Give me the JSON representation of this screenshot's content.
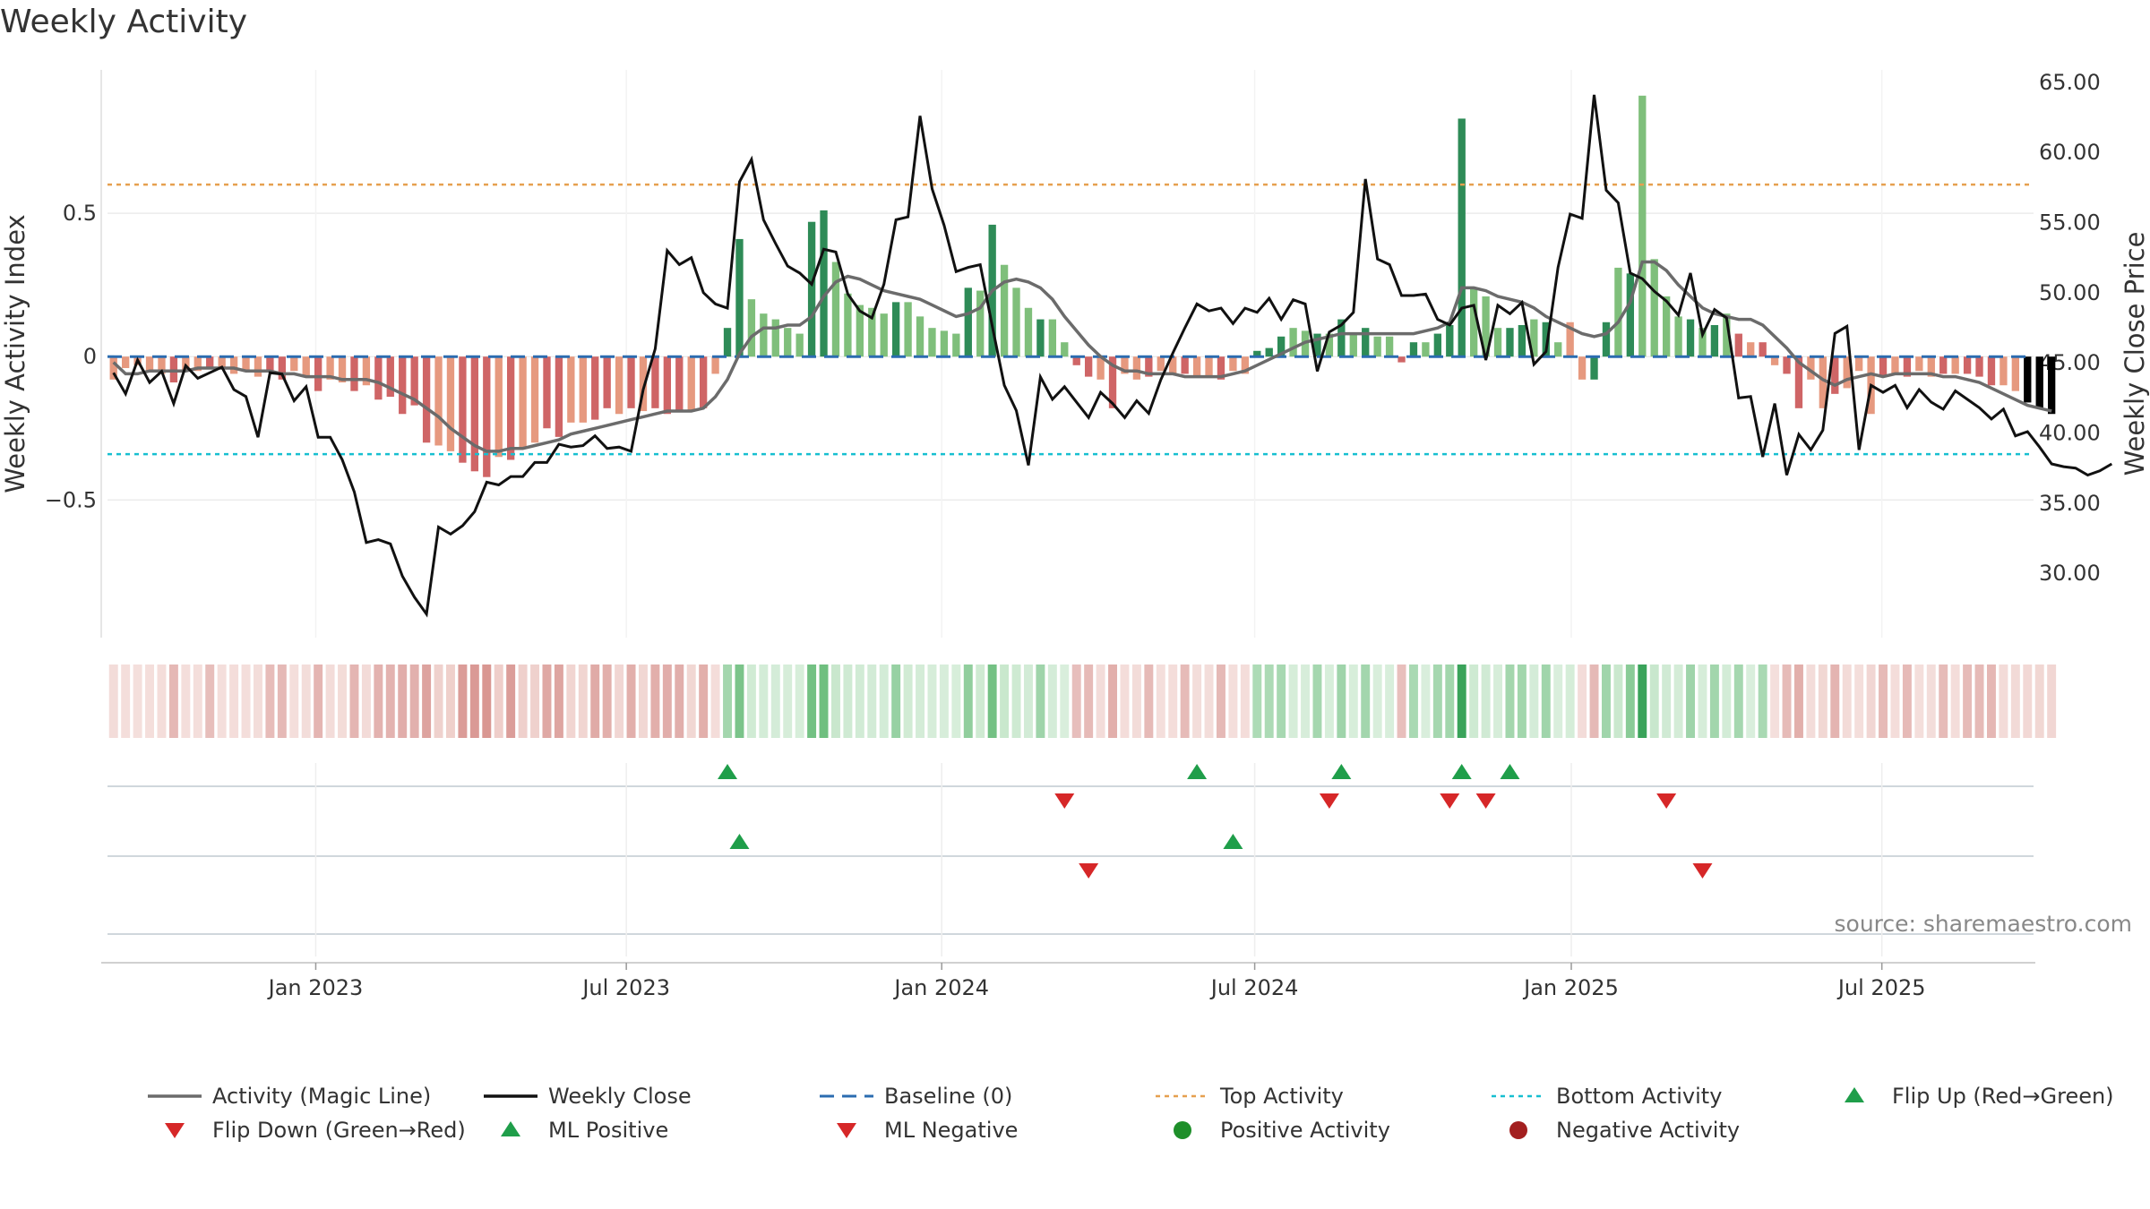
{
  "chart_data": {
    "type": "bar",
    "title": "Weekly Activity",
    "ylabel": "Weekly Activity Index",
    "y2label": "Weekly Close Price",
    "source": "source: sharemaestro.com",
    "ylim": [
      -0.98,
      1.0
    ],
    "y2lim": [
      25.42,
      65.88
    ],
    "yticks": [
      {
        "v": 0.5,
        "label": "0.5"
      },
      {
        "v": 0,
        "label": "0"
      },
      {
        "v": -0.5,
        "label": "−0.5"
      }
    ],
    "y2ticks": [
      {
        "v": 30,
        "label": "30.00"
      },
      {
        "v": 35,
        "label": "35.00"
      },
      {
        "v": 40,
        "label": "40.00"
      },
      {
        "v": 45,
        "label": "45.00"
      },
      {
        "v": 50,
        "label": "50.00"
      },
      {
        "v": 55,
        "label": "55.00"
      },
      {
        "v": 60,
        "label": "60.00"
      },
      {
        "v": 65,
        "label": "65.00"
      }
    ],
    "x_start": "2022-09-05",
    "n_weeks": 160,
    "xticks": [
      {
        "week": 17.3,
        "label": "Jan 2023"
      },
      {
        "week": 43.1,
        "label": "Jul 2023"
      },
      {
        "week": 69.3,
        "label": "Jan 2024"
      },
      {
        "week": 95.3,
        "label": "Jul 2024"
      },
      {
        "week": 121.6,
        "label": "Jan 2025"
      },
      {
        "week": 147.4,
        "label": "Jul 2025"
      }
    ],
    "top_activity": 0.6,
    "bottom_activity": -0.34,
    "activity": [
      -0.08,
      -0.04,
      -0.03,
      -0.05,
      -0.06,
      -0.09,
      -0.05,
      -0.05,
      -0.04,
      -0.04,
      -0.06,
      -0.05,
      -0.07,
      -0.05,
      -0.08,
      -0.05,
      -0.07,
      -0.12,
      -0.08,
      -0.09,
      -0.12,
      -0.1,
      -0.15,
      -0.14,
      -0.2,
      -0.17,
      -0.3,
      -0.31,
      -0.33,
      -0.37,
      -0.4,
      -0.42,
      -0.35,
      -0.36,
      -0.32,
      -0.3,
      -0.25,
      -0.28,
      -0.23,
      -0.23,
      -0.22,
      -0.18,
      -0.2,
      -0.18,
      -0.19,
      -0.18,
      -0.2,
      -0.19,
      -0.19,
      -0.18,
      -0.06,
      0.1,
      0.41,
      0.2,
      0.15,
      0.13,
      0.1,
      0.08,
      0.47,
      0.51,
      0.33,
      0.22,
      0.18,
      0.17,
      0.15,
      0.19,
      0.19,
      0.14,
      0.1,
      0.09,
      0.08,
      0.24,
      0.23,
      0.46,
      0.32,
      0.24,
      0.17,
      0.13,
      0.13,
      0.05,
      -0.03,
      -0.07,
      -0.08,
      -0.18,
      -0.06,
      -0.08,
      -0.07,
      -0.05,
      -0.06,
      -0.06,
      -0.07,
      -0.07,
      -0.08,
      -0.05,
      -0.06,
      0.02,
      0.03,
      0.07,
      0.1,
      0.09,
      0.08,
      0.08,
      0.13,
      0.08,
      0.1,
      0.07,
      0.07,
      -0.02,
      0.05,
      0.05,
      0.08,
      0.11,
      0.83,
      0.24,
      0.21,
      0.1,
      0.1,
      0.11,
      0.13,
      0.12,
      0.05,
      0.12,
      -0.08,
      -0.08,
      0.12,
      0.31,
      0.29,
      0.91,
      0.34,
      0.21,
      0.14,
      0.13,
      0.1,
      0.11,
      0.15,
      0.08,
      0.05,
      0.05,
      -0.03,
      -0.06,
      -0.18,
      -0.08,
      -0.18,
      -0.13,
      -0.11,
      -0.05,
      -0.2,
      -0.07,
      -0.06,
      -0.07,
      -0.05,
      -0.07,
      -0.06,
      -0.06,
      -0.06,
      -0.07,
      -0.1,
      -0.1,
      -0.12,
      -0.16,
      -0.18,
      -0.2
    ],
    "bar_colors": [
      "#e6997f",
      "#e6997f",
      "#e6997f",
      "#e6997f",
      "#e6997f",
      "#cf6566",
      "#e6997f",
      "#e6997f",
      "#cf6566",
      "#e6997f",
      "#e6997f",
      "#e6997f",
      "#e6997f",
      "#cf6566",
      "#cf6566",
      "#e6997f",
      "#e6997f",
      "#cf6566",
      "#e6997f",
      "#e6997f",
      "#cf6566",
      "#e6997f",
      "#cf6566",
      "#cf6566",
      "#cf6566",
      "#cf6566",
      "#cf6566",
      "#e6997f",
      "#e6997f",
      "#cf6566",
      "#cf6566",
      "#cf6566",
      "#e6997f",
      "#cf6566",
      "#e6997f",
      "#e6997f",
      "#cf6566",
      "#cf6566",
      "#e6997f",
      "#e6997f",
      "#cf6566",
      "#cf6566",
      "#e6997f",
      "#cf6566",
      "#e6997f",
      "#cf6566",
      "#cf6566",
      "#cf6566",
      "#e6997f",
      "#cf6566",
      "#e6997f",
      "#2e8b57",
      "#2e8b57",
      "#7fbf7b",
      "#7fbf7b",
      "#7fbf7b",
      "#7fbf7b",
      "#7fbf7b",
      "#2e8b57",
      "#2e8b57",
      "#7fbf7b",
      "#7fbf7b",
      "#7fbf7b",
      "#7fbf7b",
      "#7fbf7b",
      "#2e8b57",
      "#7fbf7b",
      "#7fbf7b",
      "#7fbf7b",
      "#7fbf7b",
      "#7fbf7b",
      "#2e8b57",
      "#7fbf7b",
      "#2e8b57",
      "#7fbf7b",
      "#7fbf7b",
      "#7fbf7b",
      "#2e8b57",
      "#7fbf7b",
      "#7fbf7b",
      "#cf6566",
      "#cf6566",
      "#e6997f",
      "#cf6566",
      "#e6997f",
      "#e6997f",
      "#cf6566",
      "#e6997f",
      "#e6997f",
      "#cf6566",
      "#e6997f",
      "#e6997f",
      "#cf6566",
      "#e6997f",
      "#e6997f",
      "#2e8b57",
      "#2e8b57",
      "#2e8b57",
      "#7fbf7b",
      "#7fbf7b",
      "#2e8b57",
      "#7fbf7b",
      "#2e8b57",
      "#7fbf7b",
      "#2e8b57",
      "#7fbf7b",
      "#7fbf7b",
      "#cf6566",
      "#2e8b57",
      "#7fbf7b",
      "#2e8b57",
      "#2e8b57",
      "#2e8b57",
      "#7fbf7b",
      "#7fbf7b",
      "#7fbf7b",
      "#2e8b57",
      "#2e8b57",
      "#7fbf7b",
      "#2e8b57",
      "#7fbf7b",
      "#e6997f",
      "#e6997f",
      "#2e8b57",
      "#2e8b57",
      "#7fbf7b",
      "#2e8b57",
      "#7fbf7b",
      "#7fbf7b",
      "#7fbf7b",
      "#7fbf7b",
      "#2e8b57",
      "#7fbf7b",
      "#2e8b57",
      "#7fbf7b",
      "#cf6566",
      "#e6997f",
      "#cf6566",
      "#e6997f",
      "#cf6566",
      "#cf6566",
      "#e6997f",
      "#e6997f",
      "#cf6566",
      "#e6997f",
      "#e6997f",
      "#e6997f",
      "#cf6566",
      "#e6997f",
      "#cf6566",
      "#e6997f",
      "#e6997f",
      "#cf6566",
      "#e6997f",
      "#cf6566",
      "#cf6566",
      "#cf6566",
      "#e6997f",
      "#e6997f"
    ],
    "magic_line": [
      -0.02,
      -0.06,
      -0.06,
      -0.05,
      -0.05,
      -0.05,
      -0.05,
      -0.04,
      -0.04,
      -0.04,
      -0.04,
      -0.05,
      -0.05,
      -0.05,
      -0.06,
      -0.06,
      -0.07,
      -0.07,
      -0.07,
      -0.08,
      -0.08,
      -0.08,
      -0.09,
      -0.11,
      -0.13,
      -0.15,
      -0.18,
      -0.21,
      -0.25,
      -0.28,
      -0.31,
      -0.33,
      -0.33,
      -0.32,
      -0.32,
      -0.31,
      -0.3,
      -0.29,
      -0.27,
      -0.26,
      -0.25,
      -0.24,
      -0.23,
      -0.22,
      -0.21,
      -0.2,
      -0.19,
      -0.19,
      -0.19,
      -0.18,
      -0.14,
      -0.08,
      0.01,
      0.07,
      0.1,
      0.1,
      0.11,
      0.11,
      0.14,
      0.21,
      0.26,
      0.28,
      0.27,
      0.25,
      0.23,
      0.22,
      0.21,
      0.2,
      0.18,
      0.16,
      0.14,
      0.15,
      0.17,
      0.23,
      0.26,
      0.27,
      0.26,
      0.24,
      0.2,
      0.14,
      0.09,
      0.04,
      0.0,
      -0.03,
      -0.05,
      -0.05,
      -0.06,
      -0.06,
      -0.06,
      -0.07,
      -0.07,
      -0.07,
      -0.07,
      -0.06,
      -0.05,
      -0.03,
      -0.01,
      0.01,
      0.03,
      0.05,
      0.06,
      0.07,
      0.08,
      0.08,
      0.08,
      0.08,
      0.08,
      0.08,
      0.08,
      0.09,
      0.1,
      0.12,
      0.24,
      0.24,
      0.23,
      0.21,
      0.2,
      0.19,
      0.17,
      0.14,
      0.12,
      0.1,
      0.08,
      0.07,
      0.08,
      0.12,
      0.19,
      0.33,
      0.33,
      0.3,
      0.25,
      0.21,
      0.17,
      0.15,
      0.14,
      0.13,
      0.13,
      0.11,
      0.07,
      0.03,
      -0.02,
      -0.05,
      -0.08,
      -0.1,
      -0.08,
      -0.07,
      -0.06,
      -0.07,
      -0.06,
      -0.06,
      -0.06,
      -0.06,
      -0.07,
      -0.07,
      -0.08,
      -0.09,
      -0.11,
      -0.13,
      -0.15,
      -0.17,
      -0.18,
      -0.19
    ],
    "weekly_close": [
      44.3,
      42.8,
      45.2,
      43.6,
      44.4,
      42.1,
      44.8,
      43.9,
      44.3,
      44.7,
      43.1,
      42.6,
      39.7,
      44.3,
      44.2,
      42.3,
      43.3,
      39.7,
      39.7,
      38.1,
      35.8,
      32.2,
      32.4,
      32.1,
      29.8,
      28.3,
      27.1,
      33.3,
      32.8,
      33.4,
      34.4,
      36.5,
      36.3,
      36.9,
      36.9,
      37.9,
      37.9,
      39.2,
      39.0,
      39.1,
      39.8,
      38.9,
      39.0,
      38.7,
      43.1,
      46.0,
      53.0,
      52.0,
      52.5,
      50.0,
      49.2,
      48.9,
      57.9,
      59.5,
      55.2,
      53.5,
      51.9,
      51.4,
      50.6,
      53.1,
      52.9,
      49.9,
      48.7,
      48.2,
      50.6,
      55.2,
      55.4,
      62.6,
      57.4,
      54.8,
      51.5,
      51.8,
      52.0,
      47.6,
      43.4,
      41.6,
      37.7,
      44.0,
      42.4,
      43.3,
      42.2,
      41.1,
      42.9,
      42.1,
      41.1,
      42.3,
      41.4,
      43.8,
      45.7,
      47.5,
      49.2,
      48.7,
      48.9,
      47.8,
      48.9,
      48.6,
      49.6,
      48.1,
      49.5,
      49.2,
      44.4,
      47.2,
      47.7,
      48.6,
      58.1,
      52.4,
      52.0,
      49.8,
      49.8,
      49.9,
      48.1,
      47.7,
      48.9,
      49.1,
      45.2,
      49.1,
      48.5,
      49.3,
      44.9,
      45.8,
      51.8,
      55.6,
      55.3,
      64.1,
      57.3,
      56.4,
      51.4,
      51.0,
      50.1,
      49.4,
      48.4,
      51.4,
      47.0,
      48.8,
      48.2,
      42.5,
      42.6,
      38.3,
      42.1,
      37.0,
      39.9,
      38.8,
      40.2,
      47.1,
      47.6,
      38.8,
      43.4,
      42.9,
      43.4,
      41.8,
      43.1,
      42.2,
      41.7,
      43.0,
      42.4,
      41.8,
      41.0,
      41.7,
      39.8,
      40.1,
      39.0,
      37.8,
      37.6,
      37.5,
      37.0,
      37.3,
      37.8
    ],
    "flip_up": [
      51,
      90,
      102,
      112,
      116
    ],
    "flip_down": [
      79,
      101,
      111,
      114,
      129
    ],
    "ml_positive": [
      52,
      93
    ],
    "ml_negative": [
      81,
      132
    ],
    "strip_colors": {
      "1": "#2e8b57",
      "2": "#7fbf7b",
      "3": "#7fbf7b",
      "4": "#7fbf7b",
      "-1": "#cf6566",
      "-2": "#e6997f",
      "-3": "#e6997f",
      "-4": "#e6997f"
    },
    "series_colors": {
      "magic_line": "#6b6b6b",
      "weekly_close": "#111111",
      "baseline": "#2b6cb0",
      "top_activity": "#e6a04f",
      "bottom_activity": "#17bfd0",
      "up": "#1f9e4a",
      "down": "#d62728",
      "pos_dot": "#1e8f2a",
      "neg_dot": "#a31f1f"
    },
    "legend": [
      {
        "label": "Activity (Magic Line)",
        "kind": "line",
        "color": "#6b6b6b"
      },
      {
        "label": "Weekly Close",
        "kind": "line",
        "color": "#111111"
      },
      {
        "label": "Baseline (0)",
        "kind": "dash",
        "color": "#2b6cb0"
      },
      {
        "label": "Top Activity",
        "kind": "dot-line",
        "color": "#e6a04f"
      },
      {
        "label": "Bottom Activity",
        "kind": "dot-line",
        "color": "#17bfd0"
      },
      {
        "label": "Flip Up (Red→Green)",
        "kind": "tri-up",
        "color": "#1f9e4a"
      },
      {
        "label": "Flip Down (Green→Red)",
        "kind": "tri-down",
        "color": "#d62728"
      },
      {
        "label": "ML Positive",
        "kind": "tri-up",
        "color": "#1f9e4a"
      },
      {
        "label": "ML Negative",
        "kind": "tri-down",
        "color": "#d62728"
      },
      {
        "label": "Positive Activity",
        "kind": "dot",
        "color": "#1e8f2a"
      },
      {
        "label": "Negative Activity",
        "kind": "dot",
        "color": "#a31f1f"
      }
    ]
  }
}
